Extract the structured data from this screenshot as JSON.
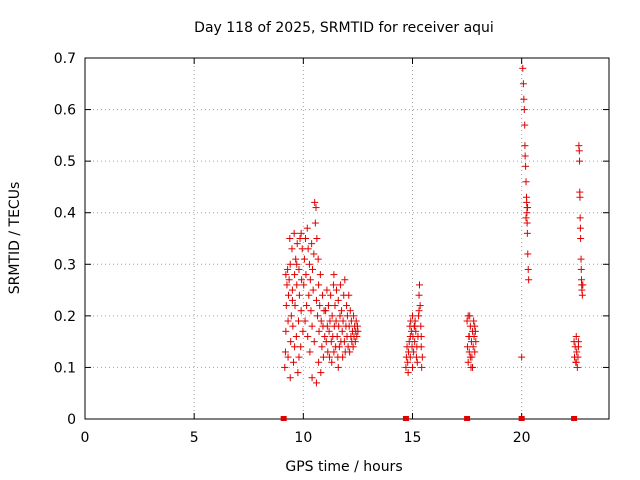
{
  "chart_data": {
    "type": "scatter",
    "title": "Day 118 of 2025, SRMTID for receiver aqui",
    "xlabel": "GPS time / hours",
    "ylabel": "SRMTID / TECUs",
    "xlim": [
      0,
      24
    ],
    "ylim": [
      0,
      0.7
    ],
    "x_ticks": [
      0,
      5,
      10,
      15,
      20
    ],
    "y_ticks": [
      0,
      0.1,
      0.2,
      0.3,
      0.4,
      0.5,
      0.6,
      0.7
    ],
    "x_tick_labels": [
      "0",
      "5",
      "10",
      "15",
      "20"
    ],
    "y_tick_labels": [
      "0",
      "0.1",
      "0.2",
      "0.3",
      "0.4",
      "0.5",
      "0.6",
      "0.7"
    ],
    "grid": true,
    "marker": "+",
    "marker_color": "#e00000",
    "zero_markers_x": [
      9.1,
      14.7,
      17.5,
      20.0,
      22.4
    ],
    "clusters": [
      {
        "x_range": [
          9.1,
          10.0
        ],
        "points": [
          [
            9.15,
            0.1
          ],
          [
            9.18,
            0.13
          ],
          [
            9.2,
            0.17
          ],
          [
            9.22,
            0.22
          ],
          [
            9.25,
            0.26
          ],
          [
            9.28,
            0.29
          ],
          [
            9.3,
            0.12
          ],
          [
            9.32,
            0.24
          ],
          [
            9.35,
            0.27
          ],
          [
            9.38,
            0.35
          ],
          [
            9.4,
            0.3
          ],
          [
            9.42,
            0.15
          ],
          [
            9.45,
            0.2
          ],
          [
            9.48,
            0.33
          ],
          [
            9.5,
            0.25
          ],
          [
            9.52,
            0.18
          ],
          [
            9.55,
            0.11
          ],
          [
            9.58,
            0.36
          ],
          [
            9.6,
            0.28
          ],
          [
            9.62,
            0.22
          ],
          [
            9.65,
            0.31
          ],
          [
            9.68,
            0.16
          ],
          [
            9.7,
            0.26
          ],
          [
            9.72,
            0.34
          ],
          [
            9.75,
            0.09
          ],
          [
            9.78,
            0.19
          ],
          [
            9.8,
            0.29
          ],
          [
            9.82,
            0.24
          ],
          [
            9.85,
            0.35
          ],
          [
            9.88,
            0.14
          ],
          [
            9.9,
            0.21
          ],
          [
            9.92,
            0.27
          ],
          [
            9.95,
            0.33
          ],
          [
            9.98,
            0.17
          ],
          [
            9.2,
            0.28
          ],
          [
            9.3,
            0.19
          ],
          [
            9.4,
            0.08
          ],
          [
            9.5,
            0.23
          ],
          [
            9.6,
            0.14
          ],
          [
            9.7,
            0.3
          ],
          [
            9.8,
            0.12
          ],
          [
            9.9,
            0.36
          ]
        ]
      },
      {
        "x_range": [
          10.0,
          11.0
        ],
        "points": [
          [
            10.02,
            0.26
          ],
          [
            10.05,
            0.31
          ],
          [
            10.08,
            0.19
          ],
          [
            10.1,
            0.35
          ],
          [
            10.12,
            0.28
          ],
          [
            10.15,
            0.22
          ],
          [
            10.18,
            0.37
          ],
          [
            10.2,
            0.16
          ],
          [
            10.22,
            0.33
          ],
          [
            10.25,
            0.24
          ],
          [
            10.28,
            0.3
          ],
          [
            10.3,
            0.13
          ],
          [
            10.32,
            0.27
          ],
          [
            10.35,
            0.21
          ],
          [
            10.38,
            0.34
          ],
          [
            10.4,
            0.18
          ],
          [
            10.42,
            0.29
          ],
          [
            10.45,
            0.25
          ],
          [
            10.48,
            0.32
          ],
          [
            10.5,
            0.15
          ],
          [
            10.52,
            0.42
          ],
          [
            10.55,
            0.38
          ],
          [
            10.58,
            0.41
          ],
          [
            10.6,
            0.23
          ],
          [
            10.62,
            0.35
          ],
          [
            10.65,
            0.2
          ],
          [
            10.68,
            0.31
          ],
          [
            10.7,
            0.26
          ],
          [
            10.72,
            0.17
          ],
          [
            10.75,
            0.22
          ],
          [
            10.78,
            0.28
          ],
          [
            10.8,
            0.09
          ],
          [
            10.82,
            0.19
          ],
          [
            10.85,
            0.14
          ],
          [
            10.88,
            0.24
          ],
          [
            10.9,
            0.18
          ],
          [
            10.92,
            0.12
          ],
          [
            10.95,
            0.21
          ],
          [
            10.98,
            0.16
          ],
          [
            10.6,
            0.07
          ],
          [
            10.7,
            0.11
          ],
          [
            10.4,
            0.08
          ]
        ]
      },
      {
        "x_range": [
          11.0,
          12.5
        ],
        "points": [
          [
            11.02,
            0.21
          ],
          [
            11.05,
            0.15
          ],
          [
            11.08,
            0.25
          ],
          [
            11.1,
            0.18
          ],
          [
            11.12,
            0.13
          ],
          [
            11.15,
            0.22
          ],
          [
            11.18,
            0.17
          ],
          [
            11.2,
            0.12
          ],
          [
            11.22,
            0.19
          ],
          [
            11.25,
            0.24
          ],
          [
            11.28,
            0.15
          ],
          [
            11.3,
            0.11
          ],
          [
            11.32,
            0.2
          ],
          [
            11.35,
            0.16
          ],
          [
            11.38,
            0.26
          ],
          [
            11.4,
            0.13
          ],
          [
            11.42,
            0.18
          ],
          [
            11.45,
            0.22
          ],
          [
            11.48,
            0.14
          ],
          [
            11.5,
            0.19
          ],
          [
            11.52,
            0.25
          ],
          [
            11.55,
            0.16
          ],
          [
            11.58,
            0.12
          ],
          [
            11.6,
            0.23
          ],
          [
            11.62,
            0.18
          ],
          [
            11.65,
            0.14
          ],
          [
            11.68,
            0.2
          ],
          [
            11.7,
            0.26
          ],
          [
            11.72,
            0.15
          ],
          [
            11.75,
            0.21
          ],
          [
            11.78,
            0.17
          ],
          [
            11.8,
            0.12
          ],
          [
            11.82,
            0.19
          ],
          [
            11.85,
            0.24
          ],
          [
            11.88,
            0.15
          ],
          [
            11.9,
            0.27
          ],
          [
            11.92,
            0.13
          ],
          [
            11.95,
            0.18
          ],
          [
            11.98,
            0.22
          ],
          [
            12.0,
            0.16
          ],
          [
            12.02,
            0.2
          ],
          [
            12.05,
            0.14
          ],
          [
            12.08,
            0.24
          ],
          [
            12.1,
            0.18
          ],
          [
            12.12,
            0.13
          ],
          [
            12.15,
            0.21
          ],
          [
            12.18,
            0.16
          ],
          [
            12.2,
            0.19
          ],
          [
            12.22,
            0.15
          ],
          [
            12.25,
            0.17
          ],
          [
            12.28,
            0.14
          ],
          [
            12.3,
            0.2
          ],
          [
            12.32,
            0.16
          ],
          [
            12.35,
            0.18
          ],
          [
            12.38,
            0.15
          ],
          [
            12.4,
            0.17
          ],
          [
            12.42,
            0.19
          ],
          [
            12.45,
            0.16
          ],
          [
            12.48,
            0.18
          ],
          [
            12.5,
            0.17
          ],
          [
            11.6,
            0.1
          ],
          [
            11.4,
            0.28
          ]
        ]
      },
      {
        "x_range": [
          14.7,
          15.5
        ],
        "points": [
          [
            14.7,
            0.1
          ],
          [
            14.72,
            0.12
          ],
          [
            14.75,
            0.14
          ],
          [
            14.78,
            0.11
          ],
          [
            14.8,
            0.09
          ],
          [
            14.82,
            0.13
          ],
          [
            14.85,
            0.15
          ],
          [
            14.88,
            0.18
          ],
          [
            14.9,
            0.16
          ],
          [
            14.92,
            0.19
          ],
          [
            14.95,
            0.17
          ],
          [
            14.98,
            0.14
          ],
          [
            15.0,
            0.2
          ],
          [
            15.02,
            0.16
          ],
          [
            15.05,
            0.13
          ],
          [
            15.08,
            0.18
          ],
          [
            15.1,
            0.15
          ],
          [
            15.12,
            0.19
          ],
          [
            15.15,
            0.17
          ],
          [
            15.18,
            0.12
          ],
          [
            15.2,
            0.14
          ],
          [
            15.22,
            0.11
          ],
          [
            15.25,
            0.16
          ],
          [
            15.28,
            0.2
          ],
          [
            15.3,
            0.24
          ],
          [
            15.32,
            0.26
          ],
          [
            15.35,
            0.22
          ],
          [
            15.38,
            0.18
          ],
          [
            15.4,
            0.14
          ],
          [
            15.42,
            0.1
          ],
          [
            15.45,
            0.12
          ],
          [
            14.9,
            0.12
          ],
          [
            15.0,
            0.1
          ],
          [
            15.1,
            0.18
          ],
          [
            15.3,
            0.21
          ],
          [
            15.4,
            0.16
          ]
        ]
      },
      {
        "x_range": [
          17.5,
          17.9
        ],
        "points": [
          [
            17.5,
            0.19
          ],
          [
            17.52,
            0.14
          ],
          [
            17.55,
            0.11
          ],
          [
            17.58,
            0.16
          ],
          [
            17.6,
            0.13
          ],
          [
            17.62,
            0.2
          ],
          [
            17.65,
            0.18
          ],
          [
            17.68,
            0.1
          ],
          [
            17.7,
            0.15
          ],
          [
            17.72,
            0.12
          ],
          [
            17.75,
            0.17
          ],
          [
            17.78,
            0.14
          ],
          [
            17.8,
            0.19
          ],
          [
            17.82,
            0.16
          ],
          [
            17.85,
            0.13
          ],
          [
            17.88,
            0.17
          ],
          [
            17.9,
            0.15
          ],
          [
            17.55,
            0.2
          ],
          [
            17.65,
            0.12
          ],
          [
            17.75,
            0.1
          ],
          [
            17.85,
            0.18
          ],
          [
            17.6,
            0.16
          ]
        ]
      },
      {
        "x_range": [
          20.0,
          20.3
        ],
        "points": [
          [
            20.0,
            0.12
          ],
          [
            20.05,
            0.68
          ],
          [
            20.08,
            0.65
          ],
          [
            20.1,
            0.62
          ],
          [
            20.12,
            0.6
          ],
          [
            20.14,
            0.57
          ],
          [
            20.15,
            0.53
          ],
          [
            20.16,
            0.51
          ],
          [
            20.18,
            0.49
          ],
          [
            20.2,
            0.46
          ],
          [
            20.22,
            0.43
          ],
          [
            20.23,
            0.42
          ],
          [
            20.24,
            0.4
          ],
          [
            20.25,
            0.38
          ],
          [
            20.26,
            0.36
          ],
          [
            20.27,
            0.41
          ],
          [
            20.28,
            0.32
          ],
          [
            20.3,
            0.29
          ],
          [
            20.32,
            0.27
          ],
          [
            20.2,
            0.39
          ],
          [
            20.25,
            0.41
          ]
        ]
      },
      {
        "x_range": [
          22.4,
          22.8
        ],
        "points": [
          [
            22.4,
            0.15
          ],
          [
            22.42,
            0.12
          ],
          [
            22.45,
            0.14
          ],
          [
            22.48,
            0.11
          ],
          [
            22.5,
            0.16
          ],
          [
            22.52,
            0.13
          ],
          [
            22.55,
            0.1
          ],
          [
            22.58,
            0.12
          ],
          [
            22.6,
            0.15
          ],
          [
            22.62,
            0.53
          ],
          [
            22.64,
            0.52
          ],
          [
            22.65,
            0.5
          ],
          [
            22.66,
            0.44
          ],
          [
            22.67,
            0.43
          ],
          [
            22.68,
            0.39
          ],
          [
            22.69,
            0.37
          ],
          [
            22.7,
            0.35
          ],
          [
            22.72,
            0.31
          ],
          [
            22.73,
            0.29
          ],
          [
            22.74,
            0.27
          ],
          [
            22.75,
            0.26
          ],
          [
            22.76,
            0.25
          ],
          [
            22.78,
            0.24
          ],
          [
            22.8,
            0.26
          ],
          [
            22.5,
            0.11
          ],
          [
            22.6,
            0.14
          ]
        ]
      }
    ]
  }
}
